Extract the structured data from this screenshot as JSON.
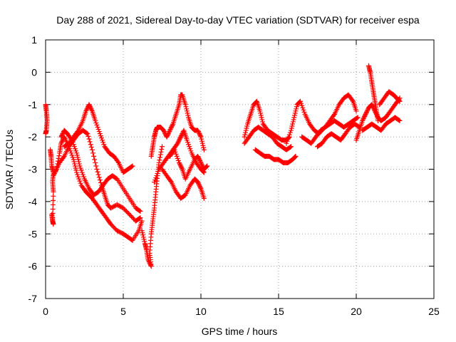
{
  "chart_data": {
    "type": "scatter",
    "title": "Day 288 of 2021, Sidereal Day-to-day VTEC variation (SDTVAR) for receiver espa",
    "xlabel": "GPS time / hours",
    "ylabel": "SDTVAR / TECUs",
    "xlim": [
      0,
      25
    ],
    "ylim": [
      -7,
      1
    ],
    "xticks": [
      "0",
      "5",
      "10",
      "15",
      "20",
      "25"
    ],
    "yticks": [
      "1",
      "0",
      "-1",
      "-2",
      "-3",
      "-4",
      "-5",
      "-6",
      "-7"
    ],
    "grid": true,
    "marker": "plus",
    "color": "#ff0000",
    "series": [
      {
        "x": [
          0.0,
          0.05,
          0.1,
          0.05,
          0.0
        ],
        "y": [
          -1.0,
          -1.2,
          -1.5,
          -1.8,
          -1.9
        ]
      },
      {
        "x": [
          0.3,
          0.35,
          0.4,
          0.5,
          0.45,
          0.5,
          0.45
        ],
        "y": [
          -2.4,
          -2.6,
          -2.9,
          -3.1,
          -3.4,
          -3.7,
          -4.5
        ]
      },
      {
        "x": [
          0.4,
          0.45,
          0.5
        ],
        "y": [
          -4.4,
          -4.6,
          -4.7
        ]
      },
      {
        "x": [
          0.5,
          0.7,
          0.9,
          1.0,
          1.2,
          1.5,
          1.8,
          2.0,
          2.3,
          2.6,
          2.8,
          3.0,
          3.3,
          3.6,
          3.9,
          4.2,
          4.6,
          5.0,
          5.3,
          5.6,
          6.0,
          6.2
        ],
        "y": [
          -3.2,
          -3.0,
          -2.5,
          -2.2,
          -2.0,
          -2.3,
          -2.7,
          -3.1,
          -3.5,
          -3.7,
          -3.8,
          -3.9,
          -4.1,
          -4.3,
          -4.5,
          -4.7,
          -4.9,
          -5.0,
          -5.1,
          -5.2,
          -4.9,
          -4.6
        ]
      },
      {
        "x": [
          0.6,
          0.9,
          1.2,
          1.5,
          1.8,
          2.1,
          2.4,
          2.7,
          3.0,
          3.3,
          3.6,
          3.8,
          4.0,
          4.2,
          4.6,
          5.0,
          5.4,
          5.8,
          6.1
        ],
        "y": [
          -3.1,
          -2.8,
          -2.6,
          -2.3,
          -2.1,
          -1.9,
          -1.8,
          -1.9,
          -2.4,
          -3.0,
          -3.5,
          -3.8,
          -4.1,
          -4.2,
          -4.1,
          -4.2,
          -4.4,
          -4.6,
          -4.5
        ]
      },
      {
        "x": [
          1.0,
          1.2,
          1.4,
          1.7,
          2.0,
          2.2,
          2.5,
          2.8,
          3.1,
          3.4,
          3.7,
          4.0,
          4.3,
          4.6,
          5.0,
          5.4,
          5.8,
          6.1
        ],
        "y": [
          -2.0,
          -1.8,
          -1.9,
          -2.1,
          -2.5,
          -2.9,
          -3.3,
          -3.6,
          -3.8,
          -3.7,
          -3.5,
          -3.3,
          -3.2,
          -3.3,
          -3.6,
          -3.9,
          -4.2,
          -4.3
        ]
      },
      {
        "x": [
          1.2,
          1.5,
          1.8,
          2.1,
          2.4,
          2.6,
          2.8,
          3.0,
          3.2,
          3.5,
          3.8,
          4.1,
          4.4,
          4.7,
          5.0,
          5.3,
          5.6
        ],
        "y": [
          -2.3,
          -2.2,
          -2.0,
          -1.8,
          -1.5,
          -1.2,
          -1.0,
          -1.2,
          -1.5,
          -1.9,
          -2.3,
          -2.5,
          -2.6,
          -2.8,
          -3.1,
          -3.0,
          -2.9
        ]
      },
      {
        "x": [
          6.2,
          6.4,
          6.5,
          6.6,
          6.8,
          6.7,
          6.8,
          6.9,
          7.0,
          7.1,
          7.2,
          7.3,
          7.5
        ],
        "y": [
          -4.9,
          -5.3,
          -5.5,
          -5.8,
          -6.0,
          -5.6,
          -5.0,
          -4.6,
          -4.2,
          -3.7,
          -3.2,
          -2.8,
          -2.3
        ]
      },
      {
        "x": [
          6.8,
          6.9,
          7.0,
          7.1,
          7.2,
          7.4,
          7.6,
          7.8
        ],
        "y": [
          -2.6,
          -2.3,
          -2.0,
          -1.8,
          -1.7,
          -1.7,
          -1.8,
          -2.0
        ]
      },
      {
        "x": [
          7.0,
          7.3,
          7.6,
          7.9,
          8.2,
          8.5,
          8.7,
          8.9,
          9.1,
          9.4,
          9.7,
          10.0,
          10.2
        ],
        "y": [
          -3.4,
          -3.0,
          -2.8,
          -2.6,
          -2.4,
          -2.2,
          -2.0,
          -1.8,
          -2.1,
          -2.5,
          -2.8,
          -3.0,
          -3.1
        ]
      },
      {
        "x": [
          7.8,
          8.0,
          8.2,
          8.4,
          8.6,
          8.7,
          8.8,
          9.0,
          9.2,
          9.4,
          9.6,
          9.8,
          10.0,
          10.2
        ],
        "y": [
          -2.0,
          -1.8,
          -1.6,
          -1.3,
          -1.0,
          -0.7,
          -0.7,
          -1.0,
          -1.4,
          -1.7,
          -1.8,
          -1.8,
          -2.0,
          -2.4
        ]
      },
      {
        "x": [
          7.5,
          7.8,
          8.1,
          8.4,
          8.7,
          9.0,
          9.3,
          9.6,
          9.8,
          10.0,
          10.2
        ],
        "y": [
          -3.0,
          -3.2,
          -3.4,
          -3.7,
          -3.9,
          -3.8,
          -3.5,
          -3.3,
          -3.4,
          -3.6,
          -3.9
        ]
      },
      {
        "x": [
          8.0,
          8.3,
          8.6,
          8.8,
          9.0,
          9.3,
          9.6,
          9.8,
          10.0,
          10.2,
          10.4
        ],
        "y": [
          -2.6,
          -2.4,
          -2.8,
          -3.0,
          -3.3,
          -3.0,
          -2.7,
          -2.6,
          -2.8,
          -3.0,
          -2.9
        ]
      },
      {
        "x": [
          12.8,
          13.0,
          13.2,
          13.4,
          13.6,
          13.8,
          14.0,
          14.3,
          14.6,
          14.9,
          15.2,
          15.5,
          15.7
        ],
        "y": [
          -2.0,
          -1.6,
          -1.3,
          -1.0,
          -0.9,
          -1.2,
          -1.6,
          -1.8,
          -1.9,
          -2.0,
          -2.1,
          -2.1,
          -2.0
        ]
      },
      {
        "x": [
          12.8,
          13.1,
          13.4,
          13.7,
          14.0,
          14.3,
          14.6,
          14.9,
          15.2,
          15.5,
          15.8
        ],
        "y": [
          -2.2,
          -2.0,
          -1.8,
          -1.7,
          -1.8,
          -1.9,
          -2.0,
          -2.2,
          -2.3,
          -2.4,
          -2.3
        ]
      },
      {
        "x": [
          13.5,
          13.8,
          14.1,
          14.4,
          14.7,
          15.0,
          15.3,
          15.6,
          15.9,
          16.1
        ],
        "y": [
          -2.4,
          -2.5,
          -2.6,
          -2.6,
          -2.7,
          -2.7,
          -2.8,
          -2.8,
          -2.7,
          -2.6
        ]
      },
      {
        "x": [
          15.5,
          15.8,
          16.0,
          16.2,
          16.4,
          16.7,
          17.0,
          17.3,
          17.6,
          18.0,
          18.3,
          18.6,
          18.9,
          19.2,
          19.5,
          19.8,
          20.0
        ],
        "y": [
          -2.2,
          -1.8,
          -1.4,
          -1.0,
          -0.9,
          -1.3,
          -1.6,
          -1.8,
          -1.9,
          -1.7,
          -1.5,
          -1.3,
          -1.0,
          -0.8,
          -0.7,
          -0.9,
          -1.2
        ]
      },
      {
        "x": [
          16.5,
          16.8,
          17.1,
          17.4,
          17.7,
          18.0,
          18.3,
          18.6,
          18.9,
          19.2,
          19.5,
          19.8,
          20.1
        ],
        "y": [
          -2.0,
          -2.1,
          -2.2,
          -2.0,
          -1.8,
          -1.7,
          -1.6,
          -1.5,
          -1.6,
          -1.7,
          -1.6,
          -1.5,
          -1.4
        ]
      },
      {
        "x": [
          17.5,
          17.8,
          18.1,
          18.4,
          18.7,
          19.0,
          19.3,
          19.6,
          19.9,
          20.2
        ],
        "y": [
          -2.3,
          -2.2,
          -2.0,
          -1.9,
          -2.0,
          -2.1,
          -1.9,
          -1.7,
          -1.6,
          -1.7
        ]
      },
      {
        "x": [
          20.0,
          20.2,
          20.4,
          20.6,
          20.8,
          21.0,
          21.2,
          21.4,
          21.6,
          21.9,
          22.2,
          22.5,
          22.8
        ],
        "y": [
          -2.1,
          -1.8,
          -1.5,
          -1.3,
          -1.1,
          -1.0,
          -1.2,
          -1.4,
          -1.5,
          -1.4,
          -1.2,
          -1.0,
          -0.8
        ]
      },
      {
        "x": [
          20.8,
          20.9,
          21.0,
          21.1,
          21.2,
          21.3,
          21.4
        ],
        "y": [
          0.2,
          0.0,
          -0.3,
          -0.6,
          -0.9,
          -1.2,
          -1.5
        ]
      },
      {
        "x": [
          20.4,
          20.7,
          21.0,
          21.3,
          21.6,
          21.9,
          22.2,
          22.5,
          22.8
        ],
        "y": [
          -1.8,
          -1.7,
          -1.6,
          -1.7,
          -1.8,
          -1.6,
          -1.5,
          -1.4,
          -1.5
        ]
      },
      {
        "x": [
          21.5,
          21.8,
          22.1,
          22.4,
          22.6,
          22.8
        ],
        "y": [
          -1.0,
          -0.8,
          -0.6,
          -0.7,
          -0.8,
          -0.9
        ]
      }
    ]
  }
}
